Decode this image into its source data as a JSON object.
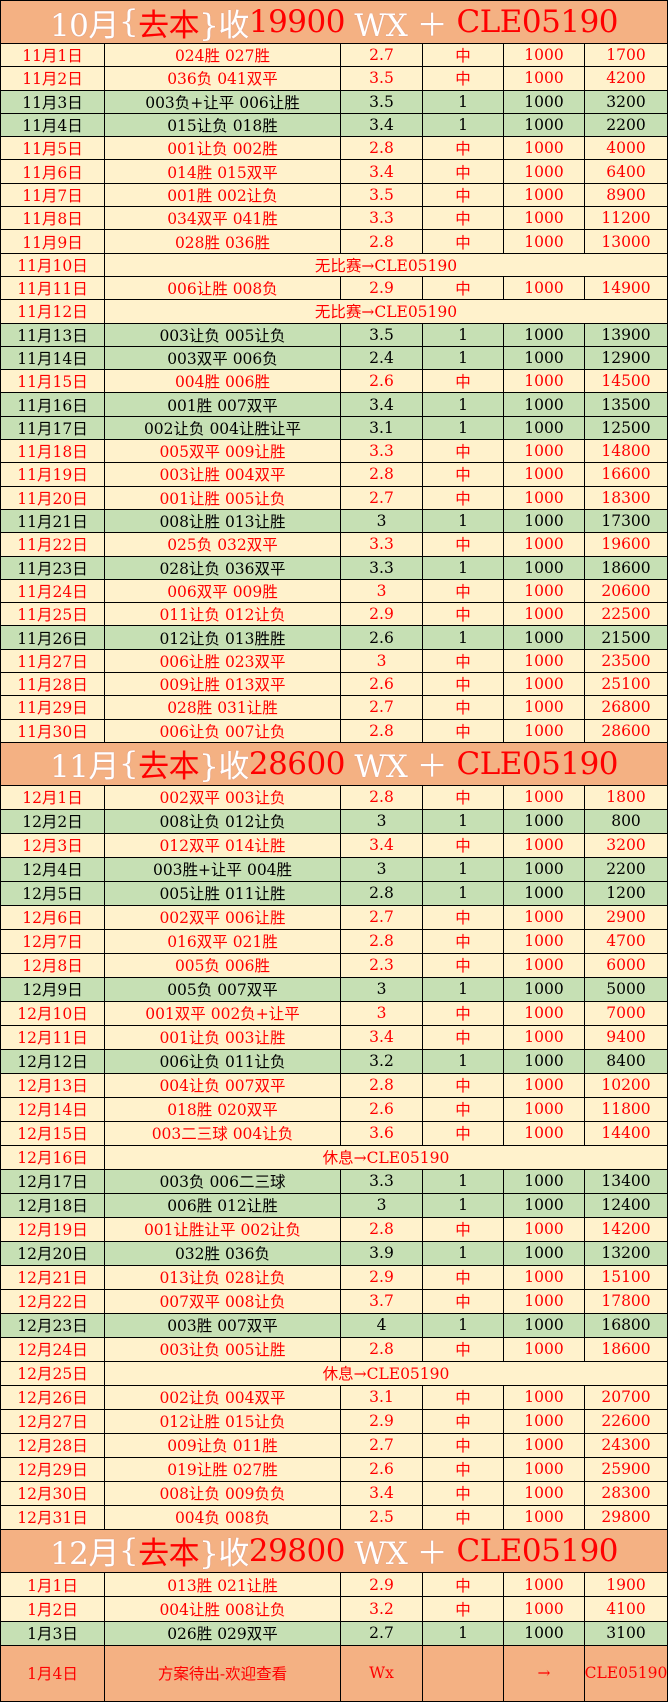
{
  "colors": {
    "header": "#F4B183",
    "win_bg": "#FFF2CC",
    "loss_bg": "#C6E0B4",
    "red": "#FF0000"
  },
  "sections": [
    {
      "title": {
        "month": "10月",
        "open": "{",
        "mid": "去本",
        "close": "}收",
        "amount": "19900",
        "wx": " WX ＋ ",
        "code": "CLE05190"
      },
      "rows": [
        [
          "11月1日",
          "024胜 027胜",
          "2.7",
          "中",
          "1000",
          "1700"
        ],
        [
          "11月2日",
          "036负 041双平",
          "3.5",
          "中",
          "1000",
          "4200"
        ],
        [
          "11月3日",
          "003负+让平 006让胜",
          "3.5",
          "1",
          "1000",
          "3200"
        ],
        [
          "11月4日",
          "015让负 018胜",
          "3.4",
          "1",
          "1000",
          "2200"
        ],
        [
          "11月5日",
          "001让负 002胜",
          "2.8",
          "中",
          "1000",
          "4000"
        ],
        [
          "11月6日",
          "014胜 015双平",
          "3.4",
          "中",
          "1000",
          "6400"
        ],
        [
          "11月7日",
          "001胜 002让负",
          "3.5",
          "中",
          "1000",
          "8900"
        ],
        [
          "11月8日",
          "034双平 041胜",
          "3.3",
          "中",
          "1000",
          "11200"
        ],
        [
          "11月9日",
          "028胜 036胜",
          "2.8",
          "中",
          "1000",
          "13000"
        ],
        [
          "11月10日",
          "无比赛→CLE05190"
        ],
        [
          "11月11日",
          "006让胜 008负",
          "2.9",
          "中",
          "1000",
          "14900"
        ],
        [
          "11月12日",
          "无比赛→CLE05190"
        ],
        [
          "11月13日",
          "003让负 005让负",
          "3.5",
          "1",
          "1000",
          "13900"
        ],
        [
          "11月14日",
          "003双平 006负",
          "2.4",
          "1",
          "1000",
          "12900"
        ],
        [
          "11月15日",
          "004胜 006胜",
          "2.6",
          "中",
          "1000",
          "14500"
        ],
        [
          "11月16日",
          "001胜 007双平",
          "3.4",
          "1",
          "1000",
          "13500"
        ],
        [
          "11月17日",
          "002让负 004让胜让平",
          "3.1",
          "1",
          "1000",
          "12500"
        ],
        [
          "11月18日",
          "005双平 009让胜",
          "3.3",
          "中",
          "1000",
          "14800"
        ],
        [
          "11月19日",
          "003让胜 004双平",
          "2.8",
          "中",
          "1000",
          "16600"
        ],
        [
          "11月20日",
          "001让胜 005让负",
          "2.7",
          "中",
          "1000",
          "18300"
        ],
        [
          "11月21日",
          "008让胜 013让胜",
          "3",
          "1",
          "1000",
          "17300"
        ],
        [
          "11月22日",
          "025负 032双平",
          "3.3",
          "中",
          "1000",
          "19600"
        ],
        [
          "11月23日",
          "028让负 036双平",
          "3.3",
          "1",
          "1000",
          "18600"
        ],
        [
          "11月24日",
          "006双平 009胜",
          "3",
          "中",
          "1000",
          "20600"
        ],
        [
          "11月25日",
          "011让负 012让负",
          "2.9",
          "中",
          "1000",
          "22500"
        ],
        [
          "11月26日",
          "012让负 013胜胜",
          "2.6",
          "1",
          "1000",
          "21500"
        ],
        [
          "11月27日",
          "006让胜 023双平",
          "3",
          "中",
          "1000",
          "23500"
        ],
        [
          "11月28日",
          "009让胜 013双平",
          "2.6",
          "中",
          "1000",
          "25100"
        ],
        [
          "11月29日",
          "028胜 031让胜",
          "2.7",
          "中",
          "1000",
          "26800"
        ],
        [
          "11月30日",
          "006让负 007让负",
          "2.8",
          "中",
          "1000",
          "28600"
        ]
      ]
    },
    {
      "title": {
        "month": "11月",
        "open": "{",
        "mid": "去本",
        "close": "}收",
        "amount": "28600",
        "wx": " WX ＋ ",
        "code": "CLE05190"
      },
      "rows": [
        [
          "12月1日",
          "002双平 003让负",
          "2.8",
          "中",
          "1000",
          "1800"
        ],
        [
          "12月2日",
          "008让负 012让负",
          "3",
          "1",
          "1000",
          "800"
        ],
        [
          "12月3日",
          "012双平 014让胜",
          "3.4",
          "中",
          "1000",
          "3200"
        ],
        [
          "12月4日",
          "003胜+让平 004胜",
          "3",
          "1",
          "1000",
          "2200"
        ],
        [
          "12月5日",
          "005让胜 011让胜",
          "2.8",
          "1",
          "1000",
          "1200"
        ],
        [
          "12月6日",
          "002双平 006让胜",
          "2.7",
          "中",
          "1000",
          "2900"
        ],
        [
          "12月7日",
          "016双平 021胜",
          "2.8",
          "中",
          "1000",
          "4700"
        ],
        [
          "12月8日",
          "005负 006胜",
          "2.3",
          "中",
          "1000",
          "6000"
        ],
        [
          "12月9日",
          "005负 007双平",
          "3",
          "1",
          "1000",
          "5000"
        ],
        [
          "12月10日",
          "001双平 002负+让平",
          "3",
          "中",
          "1000",
          "7000"
        ],
        [
          "12月11日",
          "001让负 003让胜",
          "3.4",
          "中",
          "1000",
          "9400"
        ],
        [
          "12月12日",
          "006让负 011让负",
          "3.2",
          "1",
          "1000",
          "8400"
        ],
        [
          "12月13日",
          "004让负 007双平",
          "2.8",
          "中",
          "1000",
          "10200"
        ],
        [
          "12月14日",
          "018胜 020双平",
          "2.6",
          "中",
          "1000",
          "11800"
        ],
        [
          "12月15日",
          "003二三球 004让负",
          "3.6",
          "中",
          "1000",
          "14400"
        ],
        [
          "12月16日",
          "休息→CLE05190"
        ],
        [
          "12月17日",
          "003负 006二三球",
          "3.3",
          "1",
          "1000",
          "13400"
        ],
        [
          "12月18日",
          "006胜 012让胜",
          "3",
          "1",
          "1000",
          "12400"
        ],
        [
          "12月19日",
          "001让胜让平 002让负",
          "2.8",
          "中",
          "1000",
          "14200"
        ],
        [
          "12月20日",
          "032胜 036负",
          "3.9",
          "1",
          "1000",
          "13200"
        ],
        [
          "12月21日",
          "013让负 028让负",
          "2.9",
          "中",
          "1000",
          "15100"
        ],
        [
          "12月22日",
          "007双平 008让负",
          "3.7",
          "中",
          "1000",
          "17800"
        ],
        [
          "12月23日",
          "003胜 007双平",
          "4",
          "1",
          "1000",
          "16800"
        ],
        [
          "12月24日",
          "003让负 005让胜",
          "2.8",
          "中",
          "1000",
          "18600"
        ],
        [
          "12月25日",
          "休息→CLE05190"
        ],
        [
          "12月26日",
          "002让负 004双平",
          "3.1",
          "中",
          "1000",
          "20700"
        ],
        [
          "12月27日",
          "012让胜 015让负",
          "2.9",
          "中",
          "1000",
          "22600"
        ],
        [
          "12月28日",
          "009让负 011胜",
          "2.7",
          "中",
          "1000",
          "24300"
        ],
        [
          "12月29日",
          "019让胜 027胜",
          "2.6",
          "中",
          "1000",
          "25900"
        ],
        [
          "12月30日",
          "008让负 009负负",
          "3.4",
          "中",
          "1000",
          "28300"
        ],
        [
          "12月31日",
          "004负 008负",
          "2.5",
          "中",
          "1000",
          "29800"
        ]
      ]
    },
    {
      "title": {
        "month": "12月",
        "open": "{",
        "mid": "去本",
        "close": "}收",
        "amount": "29800",
        "wx": " WX ＋ ",
        "code": "CLE05190"
      },
      "rows": [
        [
          "1月1日",
          "013胜 021让胜",
          "2.9",
          "中",
          "1000",
          "1900"
        ],
        [
          "1月2日",
          "004让胜 008让负",
          "3.2",
          "中",
          "1000",
          "4100"
        ],
        [
          "1月3日",
          "026胜 029双平",
          "2.7",
          "1",
          "1000",
          "3100"
        ]
      ]
    }
  ],
  "final_row": [
    "1月4日",
    "方案待出-欢迎查看",
    "Wx",
    "",
    "→",
    "CLE05190"
  ]
}
